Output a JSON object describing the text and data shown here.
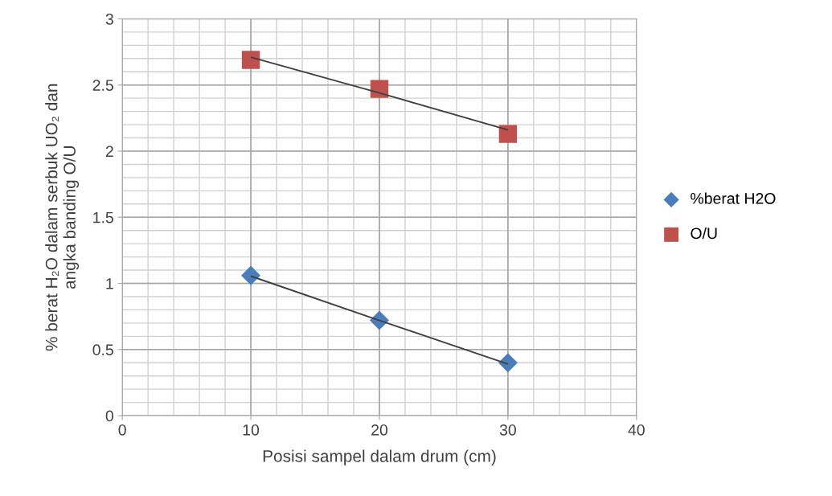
{
  "chart_data": {
    "type": "scatter",
    "xlabel": "Posisi sampel dalam drum (cm)",
    "ylabel": "% berat H₂O dalam serbuk UO₂ dan\nangka banding O/U",
    "x": [
      10,
      20,
      30
    ],
    "series": [
      {
        "name": "%berat H2O",
        "color": "#4a7ebb",
        "marker": "diamond",
        "values": [
          1.06,
          0.72,
          0.4
        ]
      },
      {
        "name": "O/U",
        "color": "#c0504d",
        "marker": "square",
        "values": [
          2.69,
          2.47,
          2.13
        ]
      },
      {
        "type": "line",
        "color": "#404040",
        "values": [
          1.055,
          0.72,
          0.39
        ]
      },
      {
        "type": "line",
        "color": "#404040",
        "values": [
          2.71,
          2.44,
          2.16
        ]
      }
    ],
    "xlim": [
      0,
      40
    ],
    "xticks": [
      0,
      10,
      20,
      30,
      40
    ],
    "ylim": [
      0,
      3
    ],
    "yticks": [
      0,
      0.5,
      1,
      1.5,
      2,
      2.5,
      3
    ],
    "grid": true,
    "legend": "right"
  }
}
